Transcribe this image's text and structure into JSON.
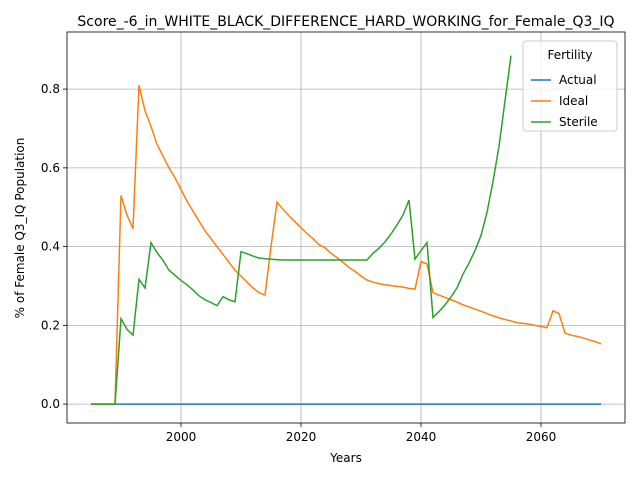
{
  "chart_data": {
    "type": "line",
    "title": "Score_-6_in_WHITE_BLACK_DIFFERENCE_HARD_WORKING_for_Female_Q3_IQ",
    "xlabel": "Years",
    "ylabel": "% of Female Q3_IQ Population",
    "x": [
      1985,
      1986,
      1987,
      1988,
      1989,
      1990,
      1991,
      1992,
      1993,
      1994,
      1995,
      1996,
      1997,
      1998,
      1999,
      2000,
      2001,
      2002,
      2003,
      2004,
      2005,
      2006,
      2007,
      2008,
      2009,
      2010,
      2011,
      2012,
      2013,
      2014,
      2015,
      2016,
      2017,
      2018,
      2019,
      2020,
      2021,
      2022,
      2023,
      2024,
      2025,
      2026,
      2027,
      2028,
      2029,
      2030,
      2031,
      2032,
      2033,
      2034,
      2035,
      2036,
      2037,
      2038,
      2039,
      2040,
      2041,
      2042,
      2043,
      2044,
      2045,
      2046,
      2047,
      2048,
      2049,
      2050,
      2051,
      2052,
      2053,
      2054,
      2055,
      2056,
      2057,
      2058,
      2059,
      2060,
      2061,
      2062,
      2063,
      2064,
      2065,
      2066,
      2067,
      2068,
      2069,
      2070
    ],
    "series": [
      {
        "name": "Actual",
        "color": "#1f77b4",
        "values": [
          0,
          0,
          0,
          0,
          0,
          0,
          0,
          0,
          0,
          0,
          0,
          0,
          0,
          0,
          0,
          0,
          0,
          0,
          0,
          0,
          0,
          0,
          0,
          0,
          0,
          0,
          0,
          0,
          0,
          0,
          0,
          0,
          0,
          0,
          0,
          0,
          0,
          0,
          0,
          0,
          0,
          0,
          0,
          0,
          0,
          0,
          0,
          0,
          0,
          0,
          0,
          0,
          0,
          0,
          0,
          0,
          0,
          0,
          0,
          0,
          0,
          0,
          0,
          0,
          0,
          0,
          0,
          0,
          0,
          0,
          0,
          0,
          0,
          0,
          0,
          0,
          0,
          0,
          0,
          0,
          0,
          0,
          0,
          0,
          0,
          0
        ]
      },
      {
        "name": "Ideal",
        "color": "#ff7f0e",
        "values": [
          0,
          0,
          0,
          0,
          0,
          0.53,
          0.48,
          0.445,
          0.81,
          0.745,
          0.705,
          0.66,
          0.63,
          0.6,
          0.575,
          0.545,
          0.515,
          0.49,
          0.465,
          0.44,
          0.42,
          0.4,
          0.38,
          0.36,
          0.34,
          0.325,
          0.31,
          0.295,
          0.283,
          0.277,
          0.4,
          0.513,
          0.495,
          0.478,
          0.463,
          0.448,
          0.433,
          0.42,
          0.405,
          0.397,
          0.383,
          0.372,
          0.36,
          0.347,
          0.337,
          0.325,
          0.315,
          0.31,
          0.306,
          0.303,
          0.301,
          0.299,
          0.297,
          0.294,
          0.292,
          0.362,
          0.356,
          0.283,
          0.277,
          0.271,
          0.265,
          0.259,
          0.252,
          0.247,
          0.241,
          0.236,
          0.23,
          0.224,
          0.219,
          0.215,
          0.211,
          0.207,
          0.205,
          0.203,
          0.2,
          0.197,
          0.194,
          0.237,
          0.23,
          0.18,
          0.175,
          0.172,
          0.168,
          0.163,
          0.159,
          0.153
        ]
      },
      {
        "name": "Sterile",
        "color": "#2ca02c",
        "values": [
          0,
          0,
          0,
          0,
          0,
          0.217,
          0.19,
          0.175,
          0.317,
          0.295,
          0.41,
          0.385,
          0.365,
          0.34,
          0.327,
          0.314,
          0.303,
          0.29,
          0.275,
          0.265,
          0.258,
          0.25,
          0.273,
          0.265,
          0.26,
          0.387,
          0.382,
          0.376,
          0.371,
          0.369,
          0.368,
          0.367,
          0.366,
          0.366,
          0.366,
          0.366,
          0.366,
          0.366,
          0.366,
          0.366,
          0.366,
          0.366,
          0.366,
          0.366,
          0.366,
          0.366,
          0.366,
          0.383,
          0.396,
          0.412,
          0.432,
          0.455,
          0.48,
          0.518,
          0.368,
          0.39,
          0.41,
          0.22,
          0.235,
          0.252,
          0.272,
          0.295,
          0.33,
          0.358,
          0.39,
          0.428,
          0.487,
          0.565,
          0.655,
          0.77,
          0.885,
          null,
          null,
          null,
          null,
          null,
          null,
          null,
          null,
          null,
          null,
          null,
          null,
          null,
          null,
          null
        ]
      }
    ],
    "xlim": [
      1981,
      2074
    ],
    "xticks": [
      2000,
      2020,
      2040,
      2060
    ],
    "ylim": [
      -0.048,
      0.945
    ],
    "yticks": [
      {
        "value": 0,
        "label": "0.0"
      },
      0.2,
      0.4,
      0.6,
      0.8
    ],
    "grid": true,
    "legend_title": "Fertility",
    "legend_loc": "upper right"
  }
}
